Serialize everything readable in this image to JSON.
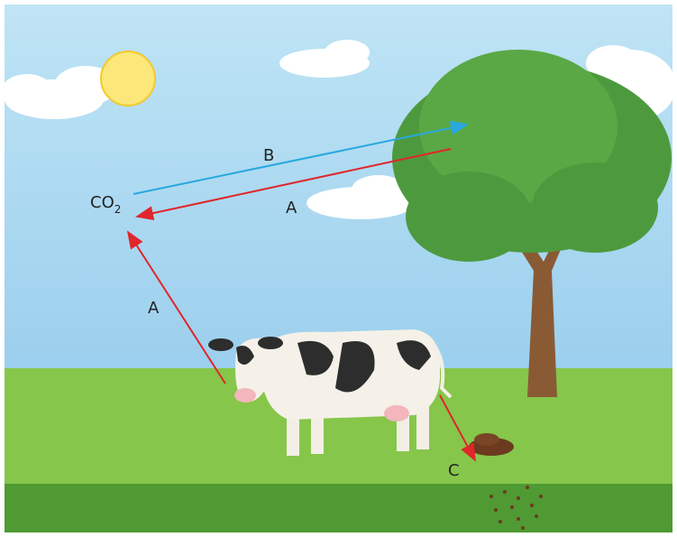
{
  "labels": {
    "co2": "CO",
    "co2_subscript": "2"
  },
  "arrows": [
    {
      "label": "B"
    },
    {
      "label": "A"
    },
    {
      "label": "A"
    },
    {
      "label": "C"
    }
  ]
}
